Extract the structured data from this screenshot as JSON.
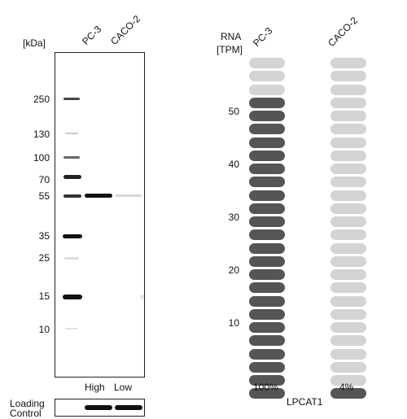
{
  "western_blot": {
    "unit_label": "[kDa]",
    "lanes": [
      "PC-3",
      "CACO-2"
    ],
    "markers": [
      "250",
      "130",
      "100",
      "70",
      "55",
      "35",
      "25",
      "15",
      "10"
    ],
    "expression_labels": [
      "High",
      "Low"
    ],
    "loading_control_label_line1": "Loading",
    "loading_control_label_line2": "Control"
  },
  "rna_panel": {
    "unit_line1": "RNA",
    "unit_line2": "[TPM]",
    "columns": [
      "PC-3",
      "CACO-2"
    ],
    "y_ticks": [
      "50",
      "40",
      "30",
      "20",
      "10"
    ],
    "percentages": [
      "100%",
      "4%"
    ],
    "gene": "LPCAT1",
    "colors": {
      "high": "#555555",
      "low": "#d4d4d4"
    }
  },
  "chart_data": {
    "type": "bar",
    "categories": [
      "PC-3",
      "CACO-2"
    ],
    "values": [
      100,
      4
    ],
    "ylabel": "RNA [TPM]",
    "xlabel": "LPCAT1"
  }
}
